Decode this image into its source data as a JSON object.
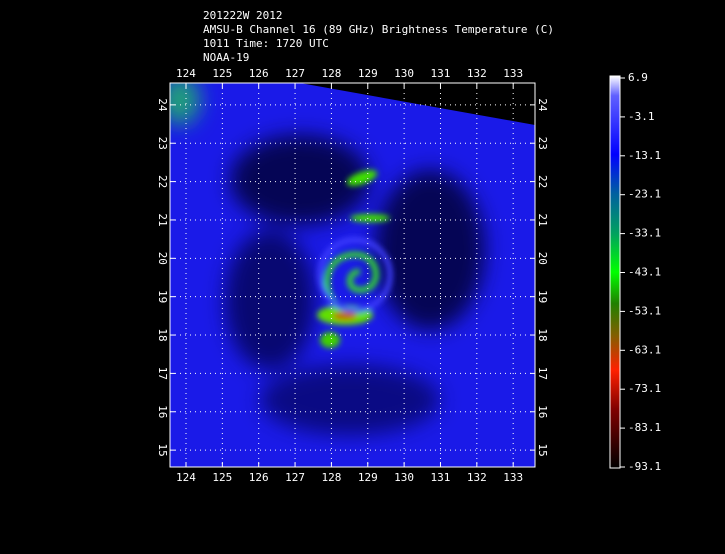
{
  "header": {
    "lines": [
      "201222W 2012",
      "AMSU-B Channel 16 (89 GHz) Brightness Temperature (C)",
      "1011 Time: 1720 UTC",
      "NOAA-19"
    ]
  },
  "map": {
    "lon_ticks": [
      124,
      125,
      126,
      127,
      128,
      129,
      130,
      131,
      132,
      133
    ],
    "lat_ticks": [
      15,
      16,
      17,
      18,
      19,
      20,
      21,
      22,
      23,
      24
    ],
    "xlim": [
      123.56,
      133.6
    ],
    "ylim": [
      14.56,
      24.57
    ]
  },
  "colorbar": {
    "labels": [
      6.9,
      -3.1,
      -13.1,
      -23.1,
      -33.1,
      -43.1,
      -53.1,
      -63.1,
      -73.1,
      -83.1,
      -93.1
    ],
    "range": [
      6.9,
      -93.1
    ]
  }
}
